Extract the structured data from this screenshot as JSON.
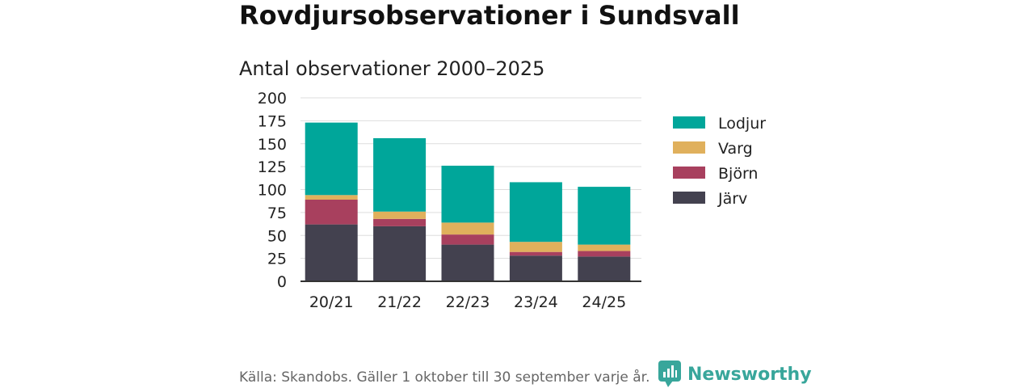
{
  "header": {
    "title": "Rovdjursobservationer i Sundsvall",
    "subtitle": "Antal observationer 2000–2025"
  },
  "footer": {
    "source": "Källa: Skandobs. Gäller 1 oktober till 30 september varje år.",
    "brand": "Newsworthy",
    "brand_color": "#38a69b"
  },
  "chart_data": {
    "type": "bar",
    "stacked": true,
    "title": "Antal observationer 2000–2025",
    "xlabel": "",
    "ylabel": "",
    "categories": [
      "20/21",
      "21/22",
      "22/23",
      "23/24",
      "24/25"
    ],
    "ylim": [
      0,
      200
    ],
    "yticks": [
      0,
      25,
      50,
      75,
      100,
      125,
      150,
      175,
      200
    ],
    "grid": true,
    "legend_position": "right",
    "series": [
      {
        "name": "Järv",
        "color": "#43414f",
        "values": [
          62,
          60,
          40,
          28,
          27
        ]
      },
      {
        "name": "Björn",
        "color": "#a8405e",
        "values": [
          27,
          8,
          11,
          4,
          6
        ]
      },
      {
        "name": "Varg",
        "color": "#e0b05c",
        "values": [
          5,
          8,
          13,
          11,
          7
        ]
      },
      {
        "name": "Lodjur",
        "color": "#00a69a",
        "values": [
          79,
          80,
          62,
          65,
          63
        ]
      }
    ]
  }
}
